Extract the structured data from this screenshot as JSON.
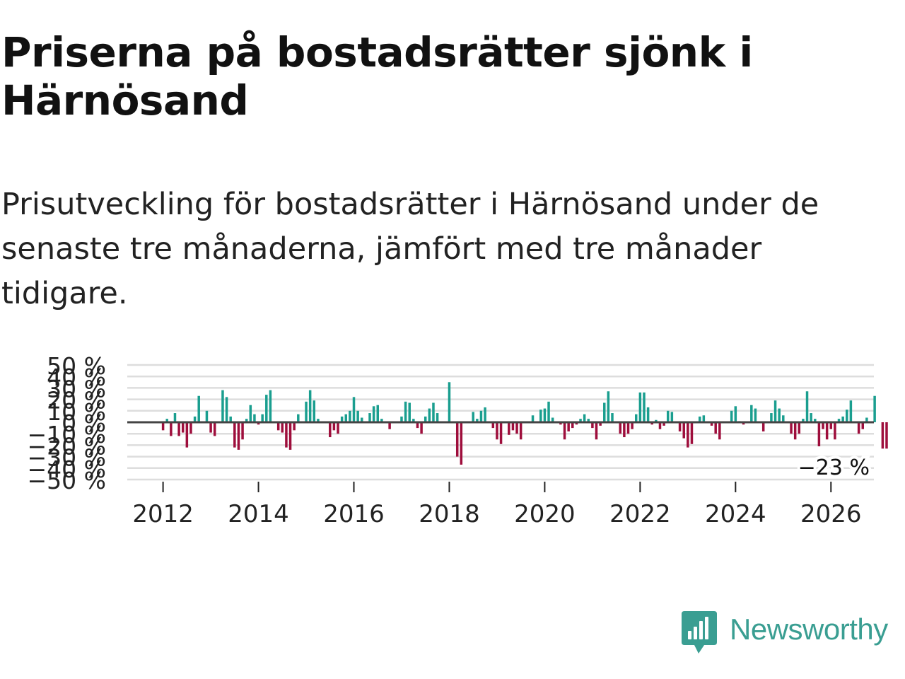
{
  "title": "Priserna på bostadsrätter sjönk i Härnösand",
  "subtitle": "Prisutveckling för bostadsrätter i Härnösand under de senaste tre månaderna, jämfört med tre månader tidigare.",
  "brand": "Newsworthy",
  "colors": {
    "positive": "#1a9e8f",
    "negative": "#9e0e3c",
    "grid": "#dddddd",
    "zero_line": "#444444",
    "brand": "#3a9e92"
  },
  "chart_data": {
    "type": "bar",
    "title": "",
    "xlabel": "",
    "ylabel": "",
    "ylim": [
      -50,
      50
    ],
    "y_ticks": [
      {
        "value": 50,
        "label": "50 %"
      },
      {
        "value": 40,
        "label": "40 %"
      },
      {
        "value": 30,
        "label": "30 %"
      },
      {
        "value": 20,
        "label": "20 %"
      },
      {
        "value": 10,
        "label": "10 %"
      },
      {
        "value": 0,
        "label": "0 %"
      },
      {
        "value": -10,
        "label": "−10 %"
      },
      {
        "value": -20,
        "label": "−20 %"
      },
      {
        "value": -30,
        "label": "−30 %"
      },
      {
        "value": -40,
        "label": "−40 %"
      },
      {
        "value": -50,
        "label": "−50 %"
      }
    ],
    "x_ticks": [
      {
        "value": 2012,
        "label": "2012"
      },
      {
        "value": 2014,
        "label": "2014"
      },
      {
        "value": 2016,
        "label": "2016"
      },
      {
        "value": 2018,
        "label": "2018"
      },
      {
        "value": 2020,
        "label": "2020"
      },
      {
        "value": 2022,
        "label": "2022"
      },
      {
        "value": 2024,
        "label": "2024"
      },
      {
        "value": 2026,
        "label": "2026"
      }
    ],
    "x_range": [
      2011.25,
      2026.9
    ],
    "start": 2012.0,
    "step": 0.0833333,
    "values": [
      -7,
      3,
      -12,
      8,
      -12,
      -9,
      -22,
      -10,
      5,
      23,
      0,
      10,
      -9,
      -12,
      0,
      28,
      22,
      5,
      -22,
      -24,
      -15,
      3,
      15,
      7,
      -2,
      7,
      24,
      28,
      0,
      -7,
      -9,
      -22,
      -24,
      -7,
      7,
      0,
      18,
      28,
      19,
      3,
      0,
      0,
      -13,
      -7,
      -10,
      5,
      7,
      10,
      22,
      10,
      4,
      0,
      8,
      14,
      15,
      3,
      0,
      -6,
      0,
      0,
      5,
      18,
      17,
      3,
      -5,
      -10,
      5,
      12,
      17,
      8,
      0,
      0,
      35,
      0,
      -30,
      -37,
      0,
      0,
      9,
      3,
      10,
      13,
      0,
      -5,
      -15,
      -19,
      0,
      -11,
      -7,
      -10,
      -15,
      0,
      0,
      6,
      0,
      11,
      12,
      18,
      4,
      0,
      -2,
      -15,
      -8,
      -5,
      -2,
      3,
      7,
      3,
      -5,
      -15,
      -3,
      17,
      27,
      8,
      0,
      -10,
      -13,
      -10,
      -6,
      7,
      26,
      26,
      13,
      -2,
      2,
      -6,
      -3,
      10,
      9,
      0,
      -8,
      -14,
      -22,
      -19,
      0,
      5,
      6,
      0,
      -3,
      -10,
      -15,
      0,
      0,
      10,
      14,
      1,
      -2,
      0,
      15,
      12,
      0,
      -8,
      0,
      8,
      19,
      12,
      6,
      0,
      -10,
      -15,
      -10,
      3,
      27,
      8,
      3,
      -21,
      -6,
      -15,
      -6,
      -15,
      3,
      5,
      11,
      19,
      0,
      -10,
      -6,
      4,
      0,
      23,
      0,
      -23,
      -23
    ],
    "highlight": {
      "value": -23,
      "label": "−23 %"
    }
  }
}
